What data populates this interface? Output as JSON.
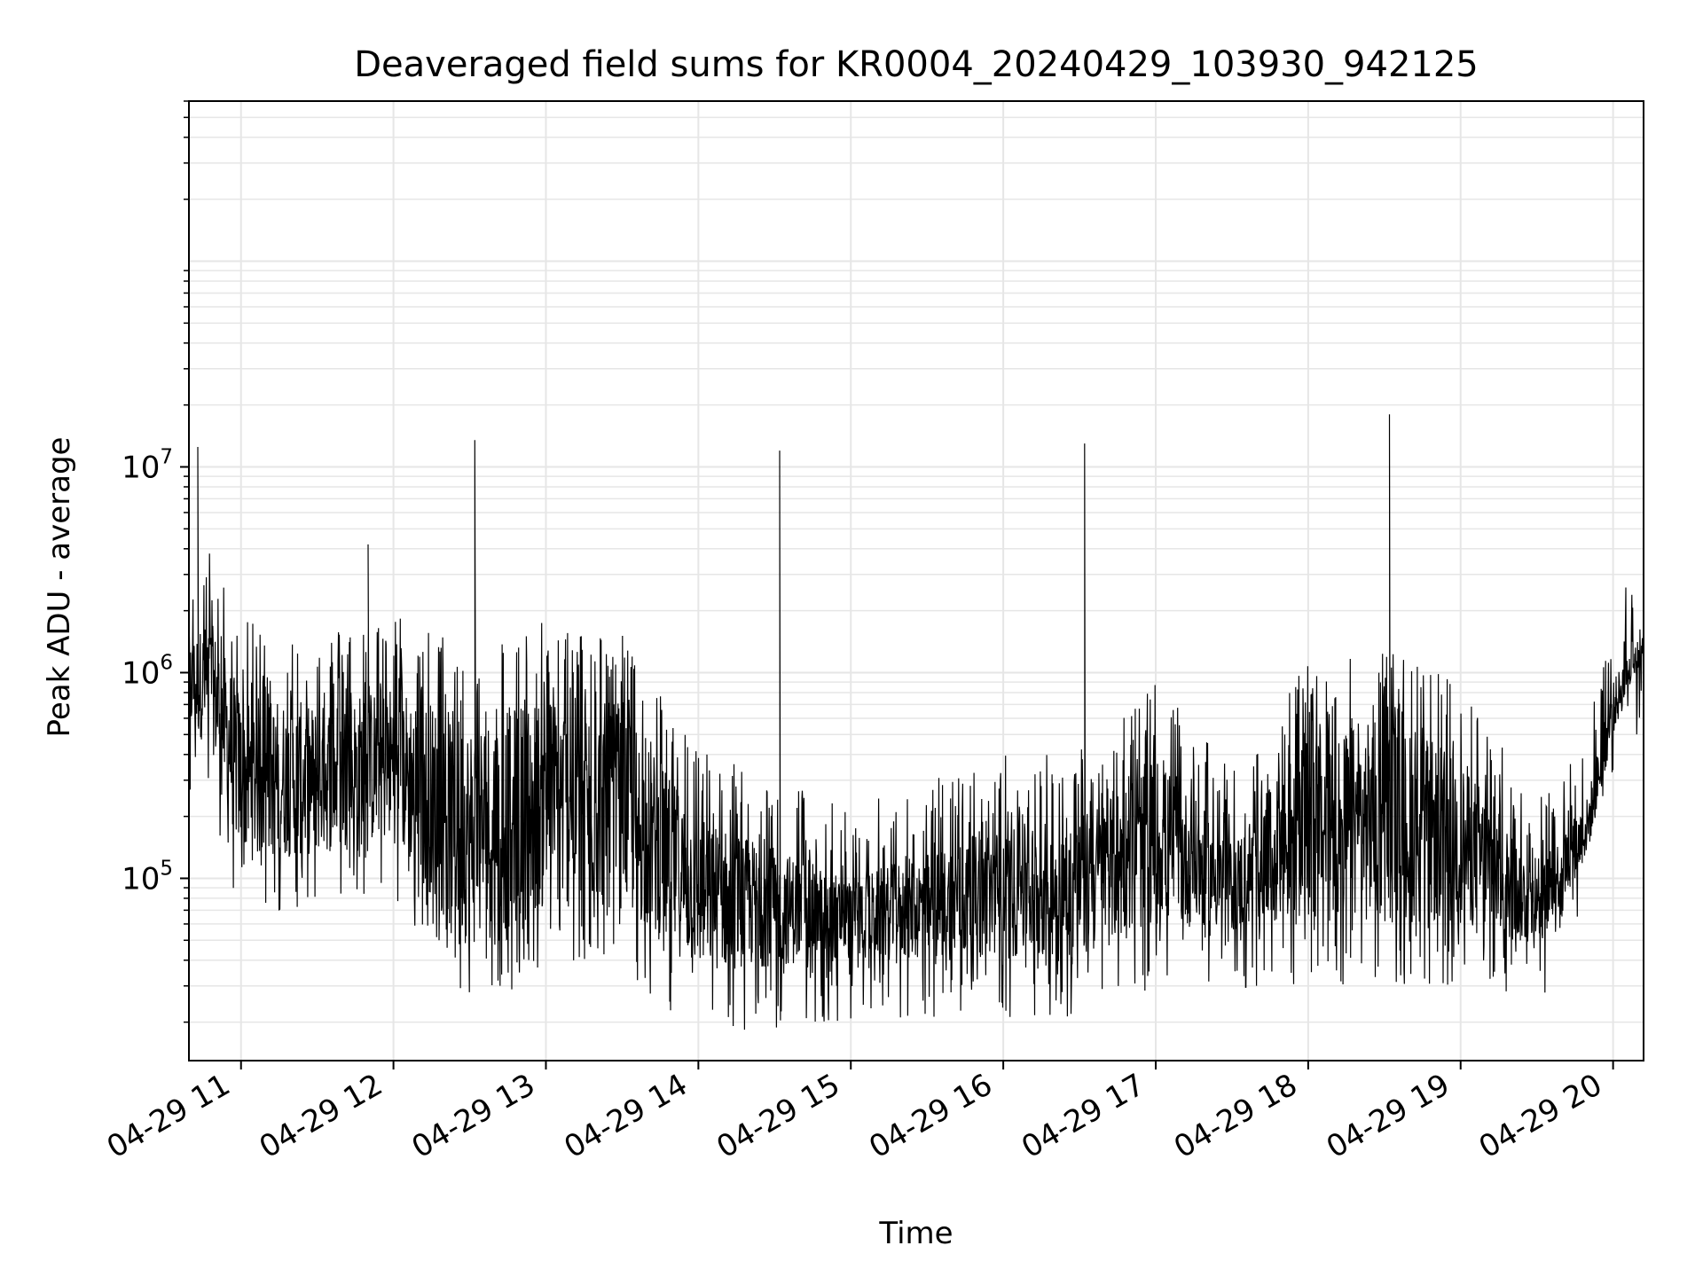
{
  "chart_data": {
    "type": "line",
    "title": "Deaveraged field sums for KR0004_20240429_103930_942125",
    "xlabel": "Time",
    "ylabel": "Peak ADU - average",
    "yscale": "log",
    "grid": true,
    "line_color": "#000000",
    "grid_color": "#e6e6e6",
    "xlim": [
      "2024-04-29 10:39:30",
      "2024-04-29 20:12:00"
    ],
    "ylim": [
      13000,
      600000000
    ],
    "x_ticks": [
      {
        "time": "2024-04-29 11:00",
        "label": "04-29 11"
      },
      {
        "time": "2024-04-29 12:00",
        "label": "04-29 12"
      },
      {
        "time": "2024-04-29 13:00",
        "label": "04-29 13"
      },
      {
        "time": "2024-04-29 14:00",
        "label": "04-29 14"
      },
      {
        "time": "2024-04-29 15:00",
        "label": "04-29 15"
      },
      {
        "time": "2024-04-29 16:00",
        "label": "04-29 16"
      },
      {
        "time": "2024-04-29 17:00",
        "label": "04-29 17"
      },
      {
        "time": "2024-04-29 18:00",
        "label": "04-29 18"
      },
      {
        "time": "2024-04-29 19:00",
        "label": "04-29 19"
      },
      {
        "time": "2024-04-29 20:00",
        "label": "04-29 20"
      }
    ],
    "y_ticks": [
      {
        "value": 100000,
        "base": "10",
        "exp": "5"
      },
      {
        "value": 1000000,
        "base": "10",
        "exp": "6"
      },
      {
        "value": 10000000,
        "base": "10",
        "exp": "7"
      }
    ],
    "baseline_profile": [
      {
        "time": "2024-04-29 10:39:30",
        "low": 500000,
        "high": 1500000
      },
      {
        "time": "2024-04-29 10:48:00",
        "low": 450000,
        "high": 1800000
      },
      {
        "time": "2024-04-29 11:00:00",
        "low": 120000,
        "high": 800000
      },
      {
        "time": "2024-04-29 11:30:00",
        "low": 130000,
        "high": 700000
      },
      {
        "time": "2024-04-29 12:00:00",
        "low": 150000,
        "high": 900000
      },
      {
        "time": "2024-04-29 12:30:00",
        "low": 45000,
        "high": 600000
      },
      {
        "time": "2024-04-29 13:00:00",
        "low": 70000,
        "high": 800000
      },
      {
        "time": "2024-04-29 13:30:00",
        "low": 70000,
        "high": 700000
      },
      {
        "time": "2024-04-29 14:00:00",
        "low": 35000,
        "high": 200000
      },
      {
        "time": "2024-04-29 15:00:00",
        "low": 40000,
        "high": 100000
      },
      {
        "time": "2024-04-29 16:00:00",
        "low": 40000,
        "high": 180000
      },
      {
        "time": "2024-04-29 16:30:00",
        "low": 40000,
        "high": 200000
      },
      {
        "time": "2024-04-29 17:00:00",
        "low": 60000,
        "high": 400000
      },
      {
        "time": "2024-04-29 17:30:00",
        "low": 55000,
        "high": 150000
      },
      {
        "time": "2024-04-29 18:00:00",
        "low": 60000,
        "high": 500000
      },
      {
        "time": "2024-04-29 18:30:00",
        "low": 60000,
        "high": 600000
      },
      {
        "time": "2024-04-29 19:00:00",
        "low": 60000,
        "high": 400000
      },
      {
        "time": "2024-04-29 19:30:00",
        "low": 45000,
        "high": 110000
      },
      {
        "time": "2024-04-29 19:50:00",
        "low": 130000,
        "high": 250000
      },
      {
        "time": "2024-04-29 20:00:00",
        "low": 500000,
        "high": 900000
      },
      {
        "time": "2024-04-29 20:12:00",
        "low": 1200000,
        "high": 1800000
      }
    ],
    "peaks": [
      {
        "time": "2024-04-29 10:43:00",
        "value": 12500000
      },
      {
        "time": "2024-04-29 11:50:00",
        "value": 4200000
      },
      {
        "time": "2024-04-29 12:32:00",
        "value": 13500000
      },
      {
        "time": "2024-04-29 14:32:00",
        "value": 12000000
      },
      {
        "time": "2024-04-29 16:32:00",
        "value": 13000000
      },
      {
        "time": "2024-04-29 18:32:00",
        "value": 18000000
      }
    ]
  }
}
